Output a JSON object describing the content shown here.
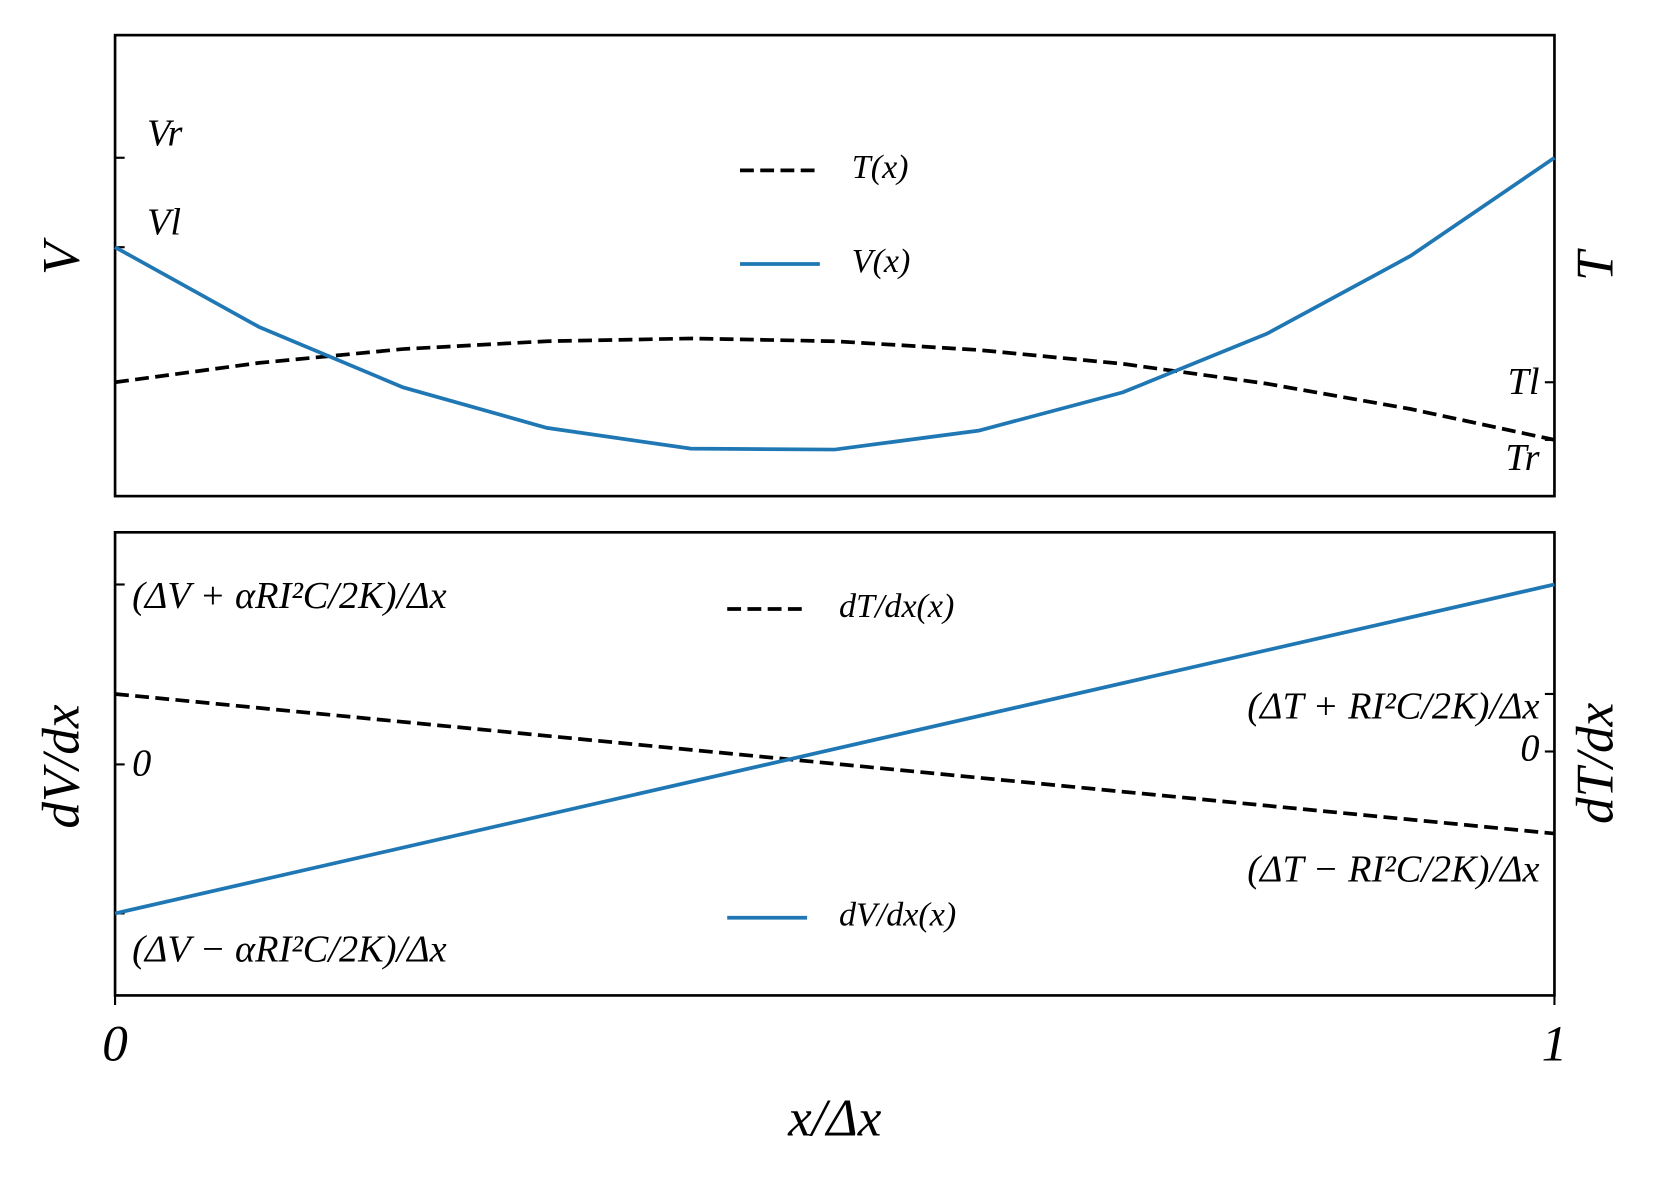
{
  "chart_data": [
    {
      "type": "line",
      "x": [
        0,
        0.1,
        0.2,
        0.3,
        0.4,
        0.5,
        0.6,
        0.7,
        0.8,
        0.9,
        1
      ],
      "xlim": [
        0,
        1
      ],
      "ylabel": "V",
      "y2label": "T",
      "ylim": [
        0,
        1
      ],
      "y2lim": [
        0,
        1
      ],
      "yticks": [
        {
          "value": 0.734,
          "label": "Vr"
        },
        {
          "value": 0.54,
          "label": "Vl"
        }
      ],
      "y2ticks": [
        {
          "value": 0.247,
          "label": "Tl"
        },
        {
          "value": 0.122,
          "label": "Tr"
        }
      ],
      "series": [
        {
          "name": "T(x)",
          "color": "#000000",
          "linestyle": "dashed",
          "axis": "y2",
          "values": [
            0.247,
            0.289,
            0.319,
            0.336,
            0.342,
            0.336,
            0.317,
            0.287,
            0.244,
            0.189,
            0.122
          ]
        },
        {
          "name": "V(x)",
          "color": "#1f77b4",
          "linestyle": "solid",
          "values": [
            0.54,
            0.367,
            0.236,
            0.148,
            0.103,
            0.101,
            0.142,
            0.225,
            0.352,
            0.521,
            0.734
          ]
        }
      ]
    },
    {
      "type": "line",
      "x": [
        0,
        1
      ],
      "xlim": [
        0,
        1
      ],
      "xticks": [
        0,
        1
      ],
      "xlabel": "x/Δx",
      "ylabel": "dV/dx",
      "y2label": "dT/dx",
      "ylim": [
        -1.284,
        1.29
      ],
      "y2lim": [
        -4.24,
        3.81
      ],
      "yticks": [
        {
          "value": 1,
          "label": "(ΔV + αRI²C/2K)/Δx"
        },
        0,
        {
          "value": -0.828,
          "label": "(ΔV − αRI²C/2K)/Δx"
        }
      ],
      "y2ticks": [
        {
          "value": 1,
          "label": "(ΔT + RI²C/2K)/Δx"
        },
        0,
        {
          "value": -1.426,
          "label": "(ΔT − RI²C/2K)/Δx"
        }
      ],
      "series": [
        {
          "name": "dT/dx(x)",
          "color": "#000000",
          "linestyle": "dashed",
          "axis": "y2",
          "values": [
            1,
            -1.426
          ]
        },
        {
          "name": "dV/dx(x)",
          "color": "#1f77b4",
          "linestyle": "solid",
          "values": [
            -0.828,
            1
          ]
        }
      ]
    }
  ]
}
